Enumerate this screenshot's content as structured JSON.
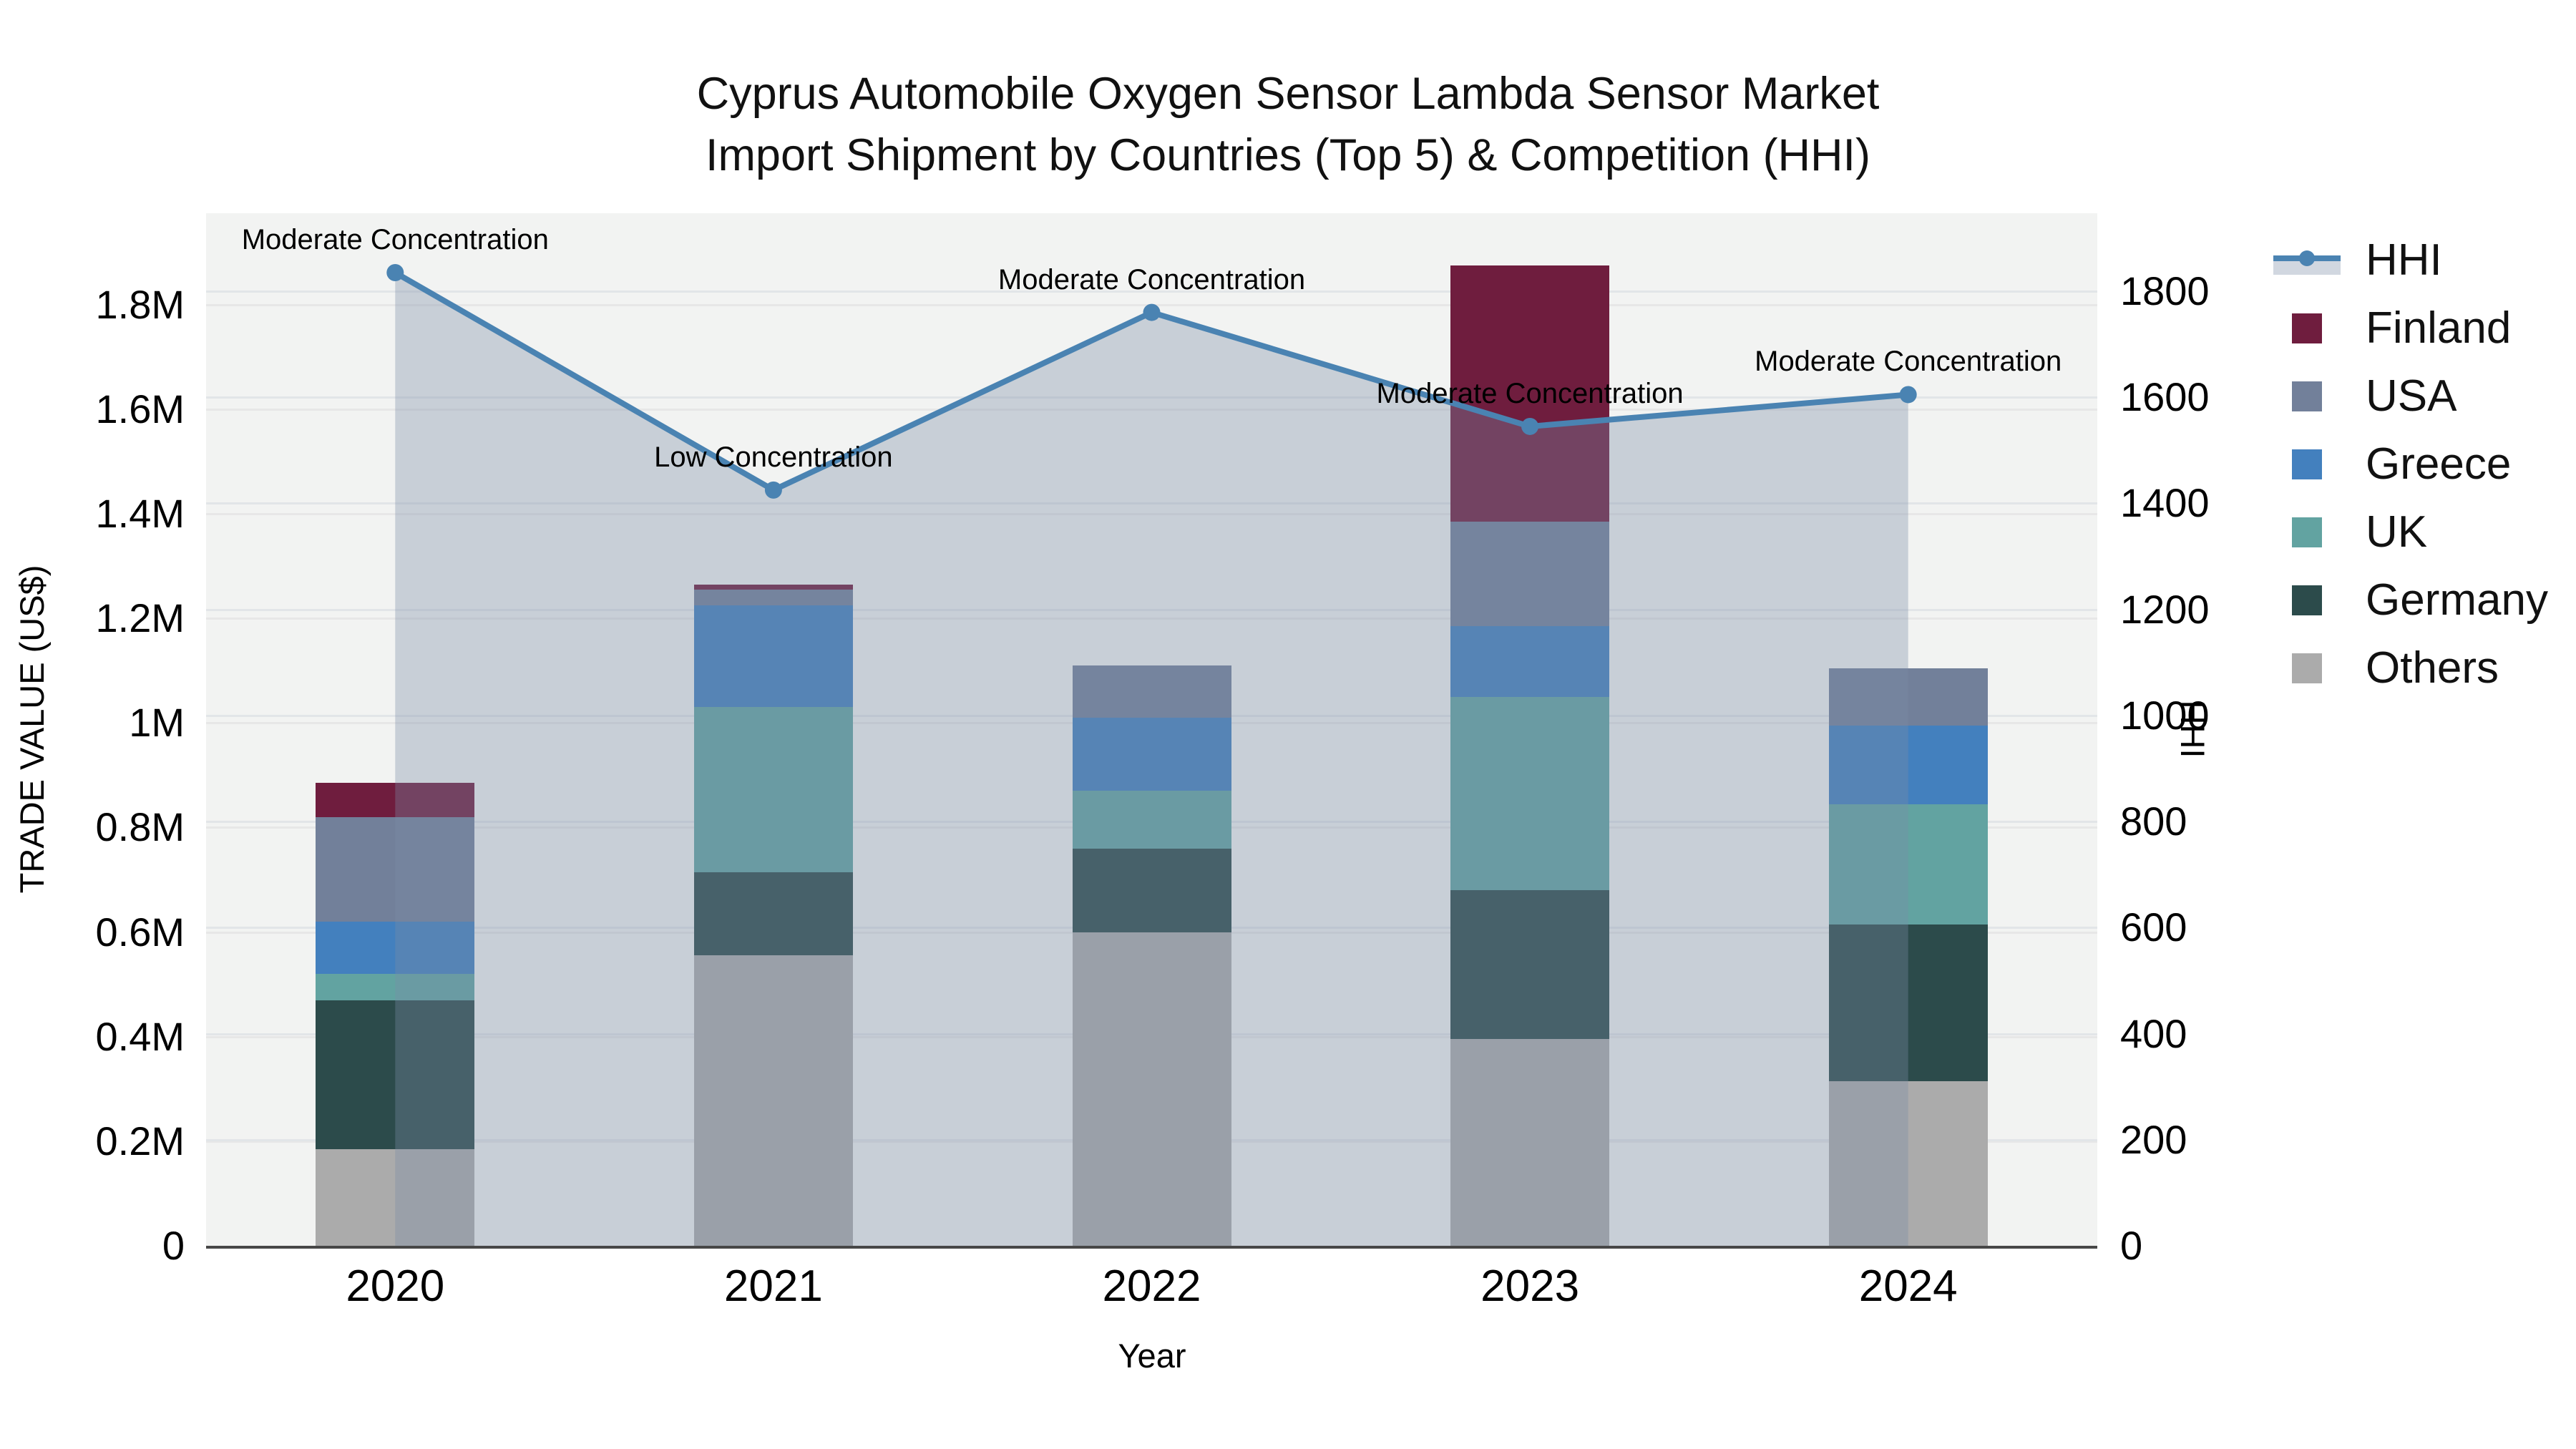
{
  "title": {
    "line1": "Cyprus Automobile Oxygen Sensor Lambda Sensor Market",
    "line2": "Import Shipment by Countries (Top 5) & Competition (HHI)"
  },
  "axes": {
    "left": {
      "label": "TRADE VALUE (US$)",
      "ticks": [
        {
          "label": "0",
          "value": 0
        },
        {
          "label": "0.2M",
          "value": 0.2
        },
        {
          "label": "0.4M",
          "value": 0.4
        },
        {
          "label": "0.6M",
          "value": 0.6
        },
        {
          "label": "0.8M",
          "value": 0.8
        },
        {
          "label": "1M",
          "value": 1.0
        },
        {
          "label": "1.2M",
          "value": 1.2
        },
        {
          "label": "1.4M",
          "value": 1.4
        },
        {
          "label": "1.6M",
          "value": 1.6
        },
        {
          "label": "1.8M",
          "value": 1.8
        }
      ],
      "max": 1.975
    },
    "right": {
      "label": "HHI",
      "ticks": [
        {
          "label": "0",
          "value": 0
        },
        {
          "label": "200",
          "value": 200
        },
        {
          "label": "400",
          "value": 400
        },
        {
          "label": "600",
          "value": 600
        },
        {
          "label": "800",
          "value": 800
        },
        {
          "label": "1000",
          "value": 1000
        },
        {
          "label": "1200",
          "value": 1200
        },
        {
          "label": "1400",
          "value": 1400
        },
        {
          "label": "1600",
          "value": 1600
        },
        {
          "label": "1800",
          "value": 1800
        }
      ],
      "max": 1947
    },
    "x": {
      "label": "Year"
    }
  },
  "chart_data": {
    "type": "bar",
    "subtype": "stacked bars with HHI line + shaded area overlay",
    "categories": [
      "2020",
      "2021",
      "2022",
      "2023",
      "2024"
    ],
    "unit": "US$ millions (trade value), index points (HHI)",
    "series": [
      {
        "name": "Others",
        "color": "#ABABAB",
        "values": [
          0.185,
          0.555,
          0.6,
          0.395,
          0.315
        ]
      },
      {
        "name": "Germany",
        "color": "#2C4B4B",
        "values": [
          0.285,
          0.16,
          0.16,
          0.285,
          0.3
        ]
      },
      {
        "name": "UK",
        "color": "#62A3A1",
        "values": [
          0.05,
          0.315,
          0.11,
          0.37,
          0.23
        ]
      },
      {
        "name": "Greece",
        "color": "#4380BE",
        "values": [
          0.1,
          0.195,
          0.14,
          0.135,
          0.15
        ]
      },
      {
        "name": "USA",
        "color": "#72809A",
        "values": [
          0.2,
          0.03,
          0.1,
          0.2,
          0.11
        ]
      },
      {
        "name": "Finland",
        "color": "#6F1D3E",
        "values": [
          0.065,
          0.01,
          0.0,
          0.49,
          0.0
        ]
      }
    ],
    "line": {
      "name": "HHI",
      "color": "#4A83B2",
      "area_fill": "rgba(124,140,166,0.35)",
      "values": [
        1835,
        1425,
        1760,
        1545,
        1605
      ]
    },
    "annotations": [
      "Moderate Concentration",
      "Low Concentration",
      "Moderate Concentration",
      "Moderate Concentration",
      "Moderate Concentration"
    ],
    "left_axis_range": [
      0,
      1.975
    ],
    "right_axis_range": [
      0,
      1947
    ],
    "grid": true,
    "legend_position": "right"
  },
  "legend": {
    "items": [
      {
        "label": "HHI",
        "type": "line",
        "color": "#4A83B2"
      },
      {
        "label": "Finland",
        "type": "swatch",
        "color": "#6F1D3E"
      },
      {
        "label": "USA",
        "type": "swatch",
        "color": "#72809A"
      },
      {
        "label": "Greece",
        "type": "swatch",
        "color": "#4380BE"
      },
      {
        "label": "UK",
        "type": "swatch",
        "color": "#62A3A1"
      },
      {
        "label": "Germany",
        "type": "swatch",
        "color": "#2C4B4B"
      },
      {
        "label": "Others",
        "type": "swatch",
        "color": "#ABABAB"
      }
    ]
  },
  "style": {
    "plot_background": "#F2F3F2",
    "figure_background": "#FFFFFF",
    "gridline_left": "#E7E7E7",
    "gridline_right": "#E2E5E8",
    "axis_line": "#474747",
    "text_color": "#111111"
  }
}
